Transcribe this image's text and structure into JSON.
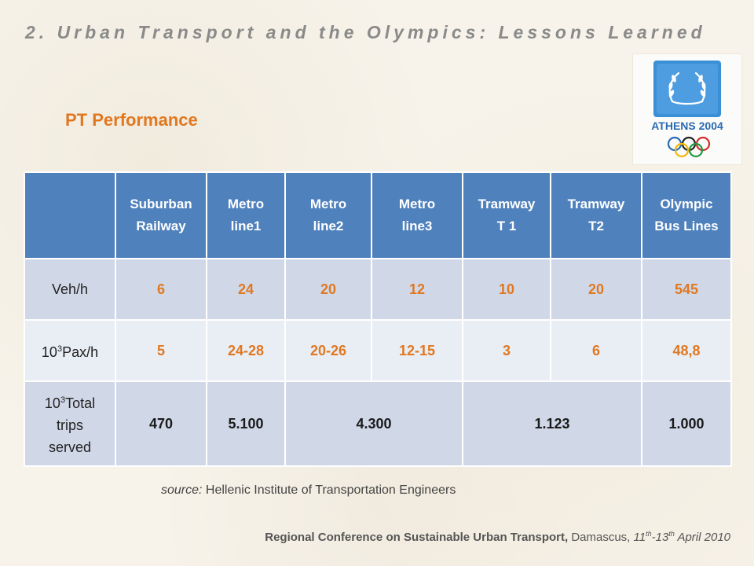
{
  "slide": {
    "title": "2. Urban Transport and the Olympics: Lessons Learned",
    "subtitle": "PT Performance"
  },
  "logo": {
    "text": "ATHENS 2004"
  },
  "table": {
    "headers": [
      [
        "Suburban",
        "Railway"
      ],
      [
        "Metro",
        "line1"
      ],
      [
        "Metro",
        "line2"
      ],
      [
        "Metro",
        "line3"
      ],
      [
        "Tramway",
        "T 1"
      ],
      [
        "Tramway",
        "T2"
      ],
      [
        "Olympic",
        "Bus Lines"
      ]
    ],
    "rows": {
      "veh_per_h": {
        "label": "Veh/h",
        "values": [
          "6",
          "24",
          "20",
          "12",
          "10",
          "20",
          "545"
        ]
      },
      "pax_per_h": {
        "label_base": "10",
        "label_exp": "3",
        "label_rest": "Pax/h",
        "values": [
          "5",
          "24-28",
          "20-26",
          "12-15",
          "3",
          "6",
          "48,8"
        ]
      },
      "total_trips": {
        "label_base": "10",
        "label_exp": "3",
        "label_line1": "Total",
        "label_line2": "trips",
        "label_line3": "served",
        "values": [
          "470",
          "5.100",
          "4.300",
          "1.123",
          "1.000"
        ]
      }
    }
  },
  "source": {
    "label": "source:",
    "text": "Hellenic Institute of Transportation Engineers"
  },
  "footer": {
    "conference": "Regional Conference on Sustainable Urban Transport,",
    "city": "Damascus,",
    "date_start": "11",
    "date_start_sup": "th",
    "date_sep": "-13",
    "date_end_sup": "th",
    "date_rest": "April 2010"
  }
}
